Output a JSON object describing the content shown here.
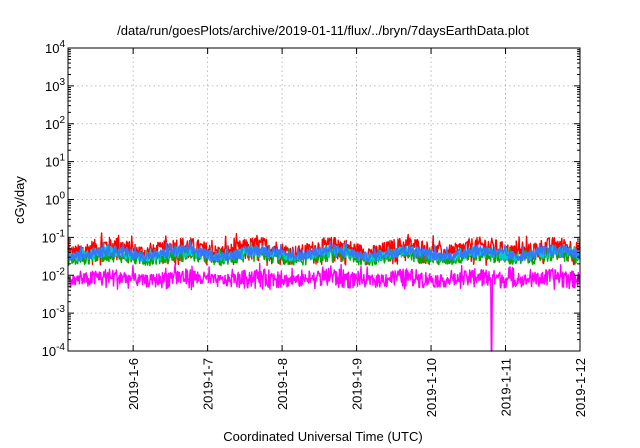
{
  "chart_data": {
    "type": "line",
    "title": "/data/run/goesPlots/archive/2019-01-11/flux/../bryn/7daysEarthData.plot",
    "xlabel": "Coordinated Universal Time (UTC)",
    "ylabel": "cGy/day",
    "yscale": "log",
    "ylim": [
      0.0001,
      10000
    ],
    "xlim": [
      "2019-01-05 03:00",
      "2019-01-12 00:00"
    ],
    "grid": true,
    "x_ticks": [
      "2019-1-6",
      "2019-1-7",
      "2019-1-8",
      "2019-1-9",
      "2019-1-10",
      "2019-1-11",
      "2019-1-12"
    ],
    "y_ticks": [
      {
        "value": 0.0001,
        "label": "10",
        "exp": "-4"
      },
      {
        "value": 0.001,
        "label": "10",
        "exp": "-3"
      },
      {
        "value": 0.01,
        "label": "10",
        "exp": "-2"
      },
      {
        "value": 0.1,
        "label": "10",
        "exp": "-1"
      },
      {
        "value": 1,
        "label": "10",
        "exp": "0"
      },
      {
        "value": 10,
        "label": "10",
        "exp": "1"
      },
      {
        "value": 100,
        "label": "10",
        "exp": "2"
      },
      {
        "value": 1000,
        "label": "10",
        "exp": "3"
      },
      {
        "value": 10000,
        "label": "10",
        "exp": "4"
      }
    ],
    "series": [
      {
        "color": "#ff0000",
        "base": 0.04,
        "amp": 0.02,
        "noise": 0.035
      },
      {
        "color": "#00aa00",
        "base": 0.025,
        "amp": 0.012,
        "noise": 0.012
      },
      {
        "color": "#00cccc",
        "base": 0.03,
        "amp": 0.014,
        "noise": 0.012
      },
      {
        "color": "#3377ff",
        "base": 0.032,
        "amp": 0.015,
        "noise": 0.014
      },
      {
        "color": "#ff00ff",
        "base": 0.0075,
        "amp": 0.002,
        "noise": 0.0045
      }
    ],
    "dips": [
      {
        "series": 4,
        "x": "2019-01-10 19:30",
        "value": 0.0001
      }
    ]
  }
}
